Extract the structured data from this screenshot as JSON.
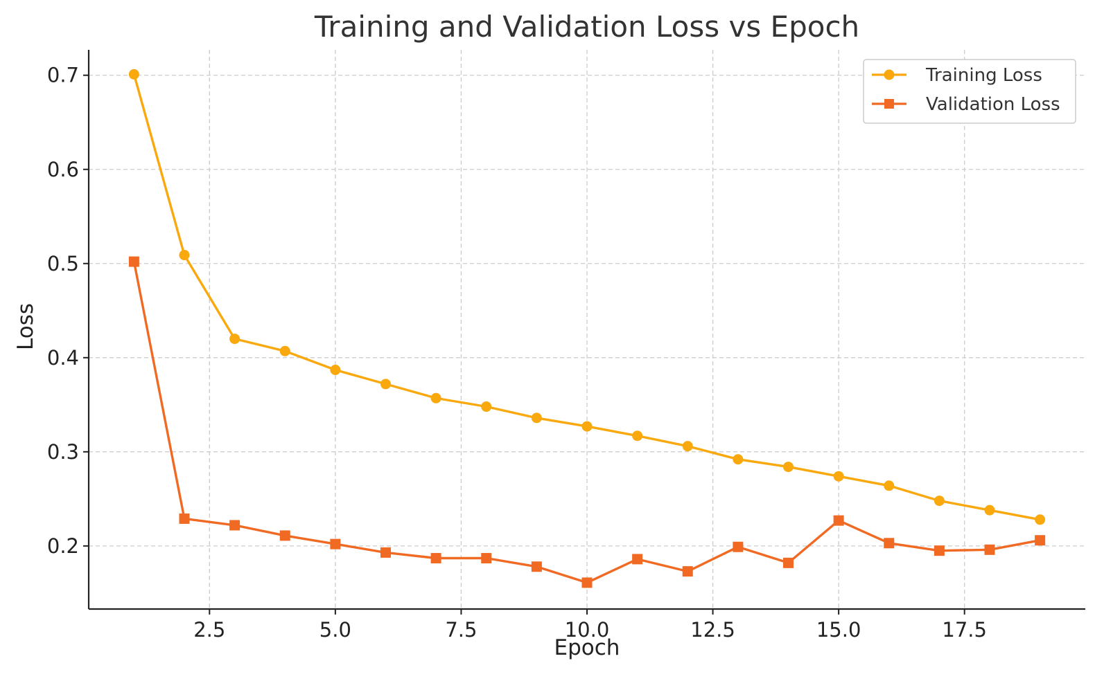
{
  "chart_data": {
    "type": "line",
    "title": "Training and Validation Loss vs Epoch",
    "xlabel": "Epoch",
    "ylabel": "Loss",
    "x": [
      1,
      2,
      3,
      4,
      5,
      6,
      7,
      8,
      9,
      10,
      11,
      12,
      13,
      14,
      15,
      16,
      17,
      18,
      19
    ],
    "xlim": [
      0.1,
      19.9
    ],
    "ylim": [
      0.133,
      0.727
    ],
    "x_ticks": [
      2.5,
      5.0,
      7.5,
      10.0,
      12.5,
      15.0,
      17.5
    ],
    "x_tick_labels": [
      "2.5",
      "5.0",
      "7.5",
      "10.0",
      "12.5",
      "15.0",
      "17.5"
    ],
    "y_ticks": [
      0.2,
      0.3,
      0.4,
      0.5,
      0.6,
      0.7
    ],
    "y_tick_labels": [
      "0.2",
      "0.3",
      "0.4",
      "0.5",
      "0.6",
      "0.7"
    ],
    "grid": true,
    "legend_position": "top-right",
    "series": [
      {
        "name": "Training Loss",
        "marker": "circle",
        "color": "#F9A80E",
        "values": [
          0.701,
          0.509,
          0.42,
          0.407,
          0.387,
          0.372,
          0.357,
          0.348,
          0.336,
          0.327,
          0.317,
          0.306,
          0.292,
          0.284,
          0.274,
          0.264,
          0.248,
          0.238,
          0.228
        ]
      },
      {
        "name": "Validation Loss",
        "marker": "square",
        "color": "#F06A24",
        "values": [
          0.502,
          0.229,
          0.222,
          0.211,
          0.202,
          0.193,
          0.187,
          0.187,
          0.178,
          0.161,
          0.186,
          0.173,
          0.199,
          0.182,
          0.227,
          0.203,
          0.195,
          0.196,
          0.206
        ]
      }
    ]
  }
}
